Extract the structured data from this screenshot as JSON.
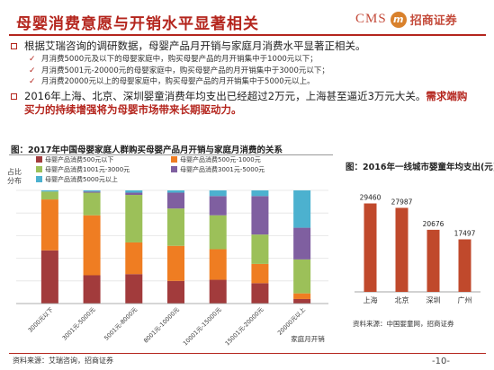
{
  "header": {
    "title": "母婴消费意愿与开销水平显著相关",
    "logo_cms": "CMS",
    "logo_mark": "m",
    "logo_name": "招商证券"
  },
  "bullets": {
    "main1": "根据艾瑞咨询的调研数据，母婴产品月开销与家庭月消费水平显著正相关。",
    "subs": [
      "月消费5000元及以下的母婴家庭中，购买母婴产品的月开销集中于1000元以下；",
      "月消费5001元-20000元的母婴家庭中，购买母婴产品的月开销集中于3000元以下；",
      "月消费20000元以上的母婴家庭中，购买母婴产品的月开销集中于5000元以上。"
    ],
    "main2_part1": "2016年上海、北京、深圳婴童消费年均支出已经超过2万元，上海甚至逼近3万元大关。",
    "main2_part2": "需求端购买力的持续增强将为母婴市场带来长期驱动力。"
  },
  "left_chart_title": "图：2017年中国母婴家庭人群购买母婴产品月开销与家庭月消费的关系",
  "right_chart_title": "图：2016年一线城市婴童年均支出(元)",
  "source_left": "资料来源：艾瑞咨询，招商证券",
  "source_right": "资料来源：中国婴童网，招商证券",
  "page_number": "-10-",
  "colors": {
    "accent": "#b4251d",
    "s1": "#a23b3c",
    "s2": "#ef7d22",
    "s3": "#9cc059",
    "s4": "#7f5fa0",
    "s5": "#4cb1cf",
    "city_bar": "#c0492c"
  },
  "chart_data": [
    {
      "type": "bar",
      "stacked": true,
      "title": "2017年中国母婴家庭人群购买母婴产品月开销与家庭月消费的关系",
      "ylabel": "占比分布",
      "xlabel": "家庭月开销",
      "ylim": [
        0,
        100
      ],
      "categories": [
        "3000元以下",
        "3001元-5000元",
        "5001元-8000元",
        "8001元-10000元",
        "10001元-15000元",
        "15001元-20000元",
        "20000元以上"
      ],
      "legend_position": "top",
      "series": [
        {
          "name": "母婴产品消费500元以下",
          "values": [
            47,
            25,
            26,
            20,
            21,
            18,
            4
          ]
        },
        {
          "name": "母婴产品消费500元-1000元",
          "values": [
            45,
            53,
            28,
            31,
            27,
            17,
            5
          ]
        },
        {
          "name": "母婴产品消费1001元-3000元",
          "values": [
            7,
            20,
            42,
            33,
            30,
            26,
            30
          ]
        },
        {
          "name": "母婴产品消费3001元-5000元",
          "values": [
            0,
            1,
            2,
            14,
            17,
            34,
            28
          ]
        },
        {
          "name": "母婴产品消费5000元以上",
          "values": [
            1,
            1,
            2,
            2,
            5,
            5,
            33
          ]
        }
      ]
    },
    {
      "type": "bar",
      "title": "2016年一线城市婴童年均支出(元)",
      "categories": [
        "上海",
        "北京",
        "深圳",
        "广州"
      ],
      "values": [
        29460,
        27987,
        20676,
        17497
      ],
      "ylim": [
        0,
        35000
      ],
      "data_labels": true
    }
  ]
}
